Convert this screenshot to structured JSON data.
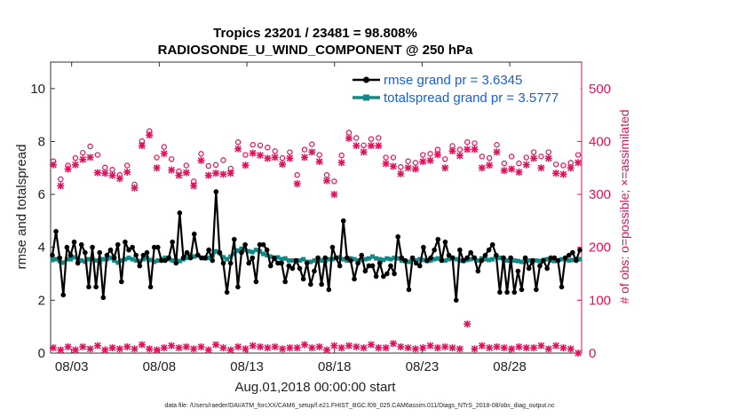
{
  "chart_data": {
    "type": "line",
    "title_line1": "Tropics 23201 / 23481 = 98.808%",
    "title_line2": "RADIOSONDE_U_WIND_COMPONENT @ 250 hPa",
    "xlabel": "Aug.01,2018 00:00:00 start",
    "ylabel_left": "rmse and totalspread",
    "ylabel_right": "# of obs: o=possible; ×=assimilated",
    "footnote": "data file: /Users/raeder/DAI/ATM_forcXX/CAM6_setup/f.e21.FHIST_BGC.f09_025.CAM6assim.011/Diags_NTrS_2018-08/obs_diag_output.nc",
    "xlim": [
      1.8,
      32.1
    ],
    "ylim_left": [
      0,
      11
    ],
    "ylim_right": [
      0,
      550
    ],
    "x_tick_labels": [
      "08/03",
      "08/08",
      "08/13",
      "08/18",
      "08/23",
      "08/28"
    ],
    "x_tick_values": [
      3,
      8,
      13,
      18,
      23,
      28
    ],
    "y_left_ticks": [
      0,
      2,
      4,
      6,
      8,
      10
    ],
    "y_right_ticks": [
      0,
      100,
      200,
      300,
      400,
      500
    ],
    "colors": {
      "rmse": "#000000",
      "spread": "#0f8a86",
      "obs": "#e0105a",
      "legend_text": "#1a5fd6"
    },
    "series": [
      {
        "name": "rmse grand pr = 3.6345",
        "axis": "left",
        "values": [
          3.7,
          4.6,
          3.6,
          2.2,
          4.0,
          3.7,
          4.2,
          3.4,
          4.1,
          3.8,
          2.5,
          4.0,
          2.5,
          3.8,
          2.1,
          3.7,
          3.9,
          3.6,
          4.1,
          2.7,
          4.2,
          3.9,
          4.0,
          3.7,
          3.3,
          3.7,
          3.8,
          2.5,
          4.0,
          4.0,
          3.5,
          3.5,
          3.6,
          4.2,
          3.4,
          5.3,
          3.6,
          3.8,
          3.6,
          4.5,
          3.7,
          3.6,
          3.6,
          3.9,
          3.5,
          6.1,
          3.8,
          3.4,
          2.3,
          3.4,
          4.3,
          2.5,
          3.8,
          4.1,
          3.4,
          3.6,
          2.7,
          4.1,
          4.1,
          3.9,
          3.3,
          3.6,
          3.4,
          3.4,
          2.7,
          3.3,
          3.2,
          3.5,
          3.2,
          2.8,
          3.4,
          2.6,
          3.1,
          3.6,
          2.6,
          3.6,
          2.4,
          4.0,
          3.6,
          3.3,
          5.0,
          3.6,
          3.5,
          2.8,
          3.4,
          3.7,
          3.1,
          3.3,
          3.3,
          2.9,
          3.4,
          2.9,
          3.0,
          3.3,
          3.0,
          4.4,
          3.6,
          3.5,
          2.4,
          3.6,
          3.4,
          3.3,
          4.0,
          3.5,
          3.6,
          3.9,
          4.3,
          3.5,
          4.2,
          3.7,
          3.6,
          2.0,
          3.9,
          3.5,
          3.6,
          3.8,
          3.6,
          3.1,
          3.5,
          3.7,
          3.9,
          4.1,
          3.7,
          2.3,
          3.6,
          2.3,
          3.6,
          2.3,
          3.1,
          2.4,
          3.6,
          3.2,
          3.5,
          2.4,
          3.3,
          3.5,
          3.2,
          3.6,
          3.6,
          3.5,
          2.5,
          3.6,
          3.7,
          3.8,
          3.5,
          3.9
        ]
      },
      {
        "name": "totalspread grand pr = 3.5777",
        "axis": "left",
        "values": [
          3.52,
          3.55,
          3.48,
          3.42,
          3.55,
          3.55,
          3.62,
          3.55,
          3.5,
          3.45,
          3.55,
          3.58,
          3.5,
          3.45,
          3.55,
          3.55,
          3.6,
          3.5,
          3.42,
          3.5,
          3.55,
          3.6,
          3.55,
          3.5,
          3.48,
          3.55,
          3.6,
          3.52,
          3.45,
          3.5,
          3.55,
          3.6,
          3.55,
          3.5,
          3.5,
          3.48,
          3.55,
          3.6,
          3.7,
          3.65,
          3.7,
          3.6,
          3.58,
          3.6,
          3.68,
          3.85,
          3.78,
          3.62,
          3.55,
          3.65,
          3.75,
          3.88,
          3.95,
          3.9,
          3.85,
          3.82,
          3.9,
          3.85,
          3.75,
          3.7,
          3.65,
          3.55,
          3.62,
          3.55,
          3.58,
          3.5,
          3.5,
          3.48,
          3.5,
          3.55,
          3.45,
          3.45,
          3.5,
          3.55,
          3.5,
          3.48,
          3.55,
          3.55,
          3.6,
          3.62,
          3.55,
          3.5,
          3.58,
          3.55,
          3.5,
          3.52,
          3.55,
          3.58,
          3.65,
          3.58,
          3.55,
          3.52,
          3.58,
          3.55,
          3.6,
          3.58,
          3.5,
          3.48,
          3.45,
          3.55,
          3.5,
          3.55,
          3.52,
          3.48,
          3.5,
          3.55,
          3.58,
          3.52,
          3.5,
          3.55,
          3.6,
          3.55,
          3.5,
          3.48,
          3.52,
          3.55,
          3.6,
          3.5,
          3.58,
          3.55,
          3.52,
          3.55,
          3.65,
          3.6,
          3.55,
          3.5,
          3.55,
          3.5,
          3.48,
          3.45,
          3.55,
          3.5,
          3.45,
          3.5,
          3.48,
          3.52,
          3.55,
          3.5,
          3.48,
          3.5,
          3.55,
          3.55,
          3.5,
          3.52,
          3.55,
          3.55
        ]
      },
      {
        "name": "# obs possible",
        "axis": "right",
        "marker": "o",
        "values": [
          356,
          322,
          348,
          362,
          372,
          384,
          368,
          344,
          340,
          330,
          348,
          312,
          394,
          413,
          363,
          383,
          360,
          337,
          348,
          318,
          370,
          347,
          349,
          358,
          342,
          392,
          368,
          387,
          386,
          382,
          375,
          362,
          373,
          330,
          378,
          388,
          368,
          330,
          318,
          367,
          410,
          400,
          386,
          398,
          400,
          363,
          363,
          345,
          356,
          353,
          368,
          370,
          378,
          360,
          385,
          378,
          392,
          390,
          365,
          362,
          387,
          352,
          365,
          352,
          363,
          373,
          365,
          373,
          350,
          348,
          353,
          368
        ]
      },
      {
        "name": "# obs assimilated",
        "axis": "right",
        "marker": "x",
        "values": [
          356,
          316,
          348,
          356,
          366,
          370,
          341,
          340,
          336,
          330,
          342,
          312,
          392,
          412,
          350,
          377,
          346,
          336,
          341,
          316,
          364,
          336,
          340,
          338,
          340,
          386,
          355,
          378,
          374,
          368,
          370,
          357,
          368,
          320,
          370,
          380,
          362,
          326,
          300,
          360,
          406,
          392,
          380,
          392,
          392,
          358,
          353,
          339,
          350,
          348,
          362,
          364,
          375,
          350,
          382,
          373,
          385,
          385,
          350,
          355,
          380,
          345,
          348,
          342,
          356,
          368,
          350,
          368,
          340,
          338,
          350,
          360
        ]
      },
      {
        "name": "# obs rejected",
        "axis": "right",
        "marker": "x",
        "values": [
          10,
          6,
          12,
          6,
          12,
          8,
          14,
          6,
          10,
          8,
          12,
          8,
          16,
          8,
          6,
          10,
          14,
          10,
          12,
          8,
          12,
          6,
          16,
          10,
          6,
          12,
          8,
          14,
          12,
          10,
          12,
          8,
          10,
          10,
          16,
          10,
          12,
          6,
          14,
          10,
          14,
          12,
          10,
          16,
          10,
          10,
          18,
          12,
          10,
          8,
          10,
          14,
          10,
          12,
          10,
          8,
          55,
          8,
          14,
          10,
          12,
          10,
          8,
          12,
          10,
          10,
          14,
          8,
          14,
          10,
          8,
          0
        ]
      }
    ]
  }
}
